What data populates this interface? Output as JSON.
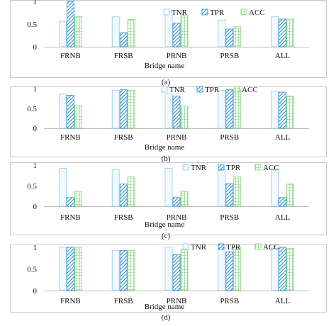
{
  "figure": {
    "background": "#ffffff",
    "panel_border": "#c8c8c8"
  },
  "series_style": {
    "TNR": {
      "color": "#8ecaf0",
      "fill": "dots"
    },
    "TPR": {
      "color": "#2d8fd0",
      "fill": "diagonal"
    },
    "ACC": {
      "color": "#7ecf72",
      "fill": "grid"
    }
  },
  "chart_data": [
    {
      "type": "bar",
      "panel_label": "(a)",
      "xlabel": "Bridge name",
      "ylabel": "",
      "categories": [
        "FRNB",
        "FRSB",
        "PRNB",
        "PRSB",
        "ALL"
      ],
      "yticks": [
        "0",
        "0.5",
        "1"
      ],
      "ylim": [
        0,
        1
      ],
      "grid": false,
      "legend": "top-right",
      "series": [
        {
          "name": "TNR",
          "values": [
            0.56,
            0.66,
            0.77,
            0.59,
            0.66
          ]
        },
        {
          "name": "TPR",
          "values": [
            1.0,
            0.31,
            0.52,
            0.39,
            0.61
          ]
        },
        {
          "name": "ACC",
          "values": [
            0.67,
            0.6,
            0.69,
            0.44,
            0.61
          ]
        }
      ]
    },
    {
      "type": "bar",
      "panel_label": "(b)",
      "xlabel": "Bridge name",
      "ylabel": "",
      "categories": [
        "FRNB",
        "FRSB",
        "PRNB",
        "PRSB",
        "ALL"
      ],
      "yticks": [
        "0",
        "0.5",
        "1"
      ],
      "ylim": [
        0,
        1
      ],
      "grid": false,
      "legend": "top-right",
      "series": [
        {
          "name": "TNR",
          "values": [
            0.86,
            0.96,
            0.87,
            0.96,
            0.93
          ]
        },
        {
          "name": "TPR",
          "values": [
            0.83,
            0.97,
            0.81,
            0.97,
            0.91
          ]
        },
        {
          "name": "ACC",
          "values": [
            0.57,
            0.96,
            0.56,
            0.96,
            0.81
          ]
        }
      ]
    },
    {
      "type": "bar",
      "panel_label": "(c)",
      "xlabel": "Bridge name",
      "ylabel": "",
      "categories": [
        "FRNB",
        "FRSB",
        "PRNB",
        "PRSB",
        "ALL"
      ],
      "yticks": [
        "0",
        "0.5",
        "1"
      ],
      "ylim": [
        0,
        1
      ],
      "grid": false,
      "legend": "top-right",
      "series": [
        {
          "name": "TNR",
          "values": [
            0.92,
            0.89,
            0.92,
            0.89,
            0.91
          ]
        },
        {
          "name": "TPR",
          "values": [
            0.21,
            0.54,
            0.21,
            0.55,
            0.21
          ]
        },
        {
          "name": "ACC",
          "values": [
            0.36,
            0.71,
            0.36,
            0.71,
            0.54
          ]
        }
      ]
    },
    {
      "type": "bar",
      "panel_label": "(d)",
      "xlabel": "Bridge name",
      "ylabel": "",
      "categories": [
        "FRNB",
        "FRSB",
        "PRNB",
        "PRSB",
        "ALL"
      ],
      "yticks": [
        "0",
        "0.5",
        "1"
      ],
      "ylim": [
        0,
        1
      ],
      "grid": false,
      "legend": "top-right",
      "series": [
        {
          "name": "TNR",
          "values": [
            1.0,
            0.93,
            1.0,
            1.0,
            0.98
          ]
        },
        {
          "name": "TPR",
          "values": [
            1.0,
            0.93,
            0.83,
            0.9,
            1.0
          ]
        },
        {
          "name": "ACC",
          "values": [
            1.0,
            0.93,
            0.94,
            0.99,
            0.98
          ]
        }
      ]
    }
  ]
}
